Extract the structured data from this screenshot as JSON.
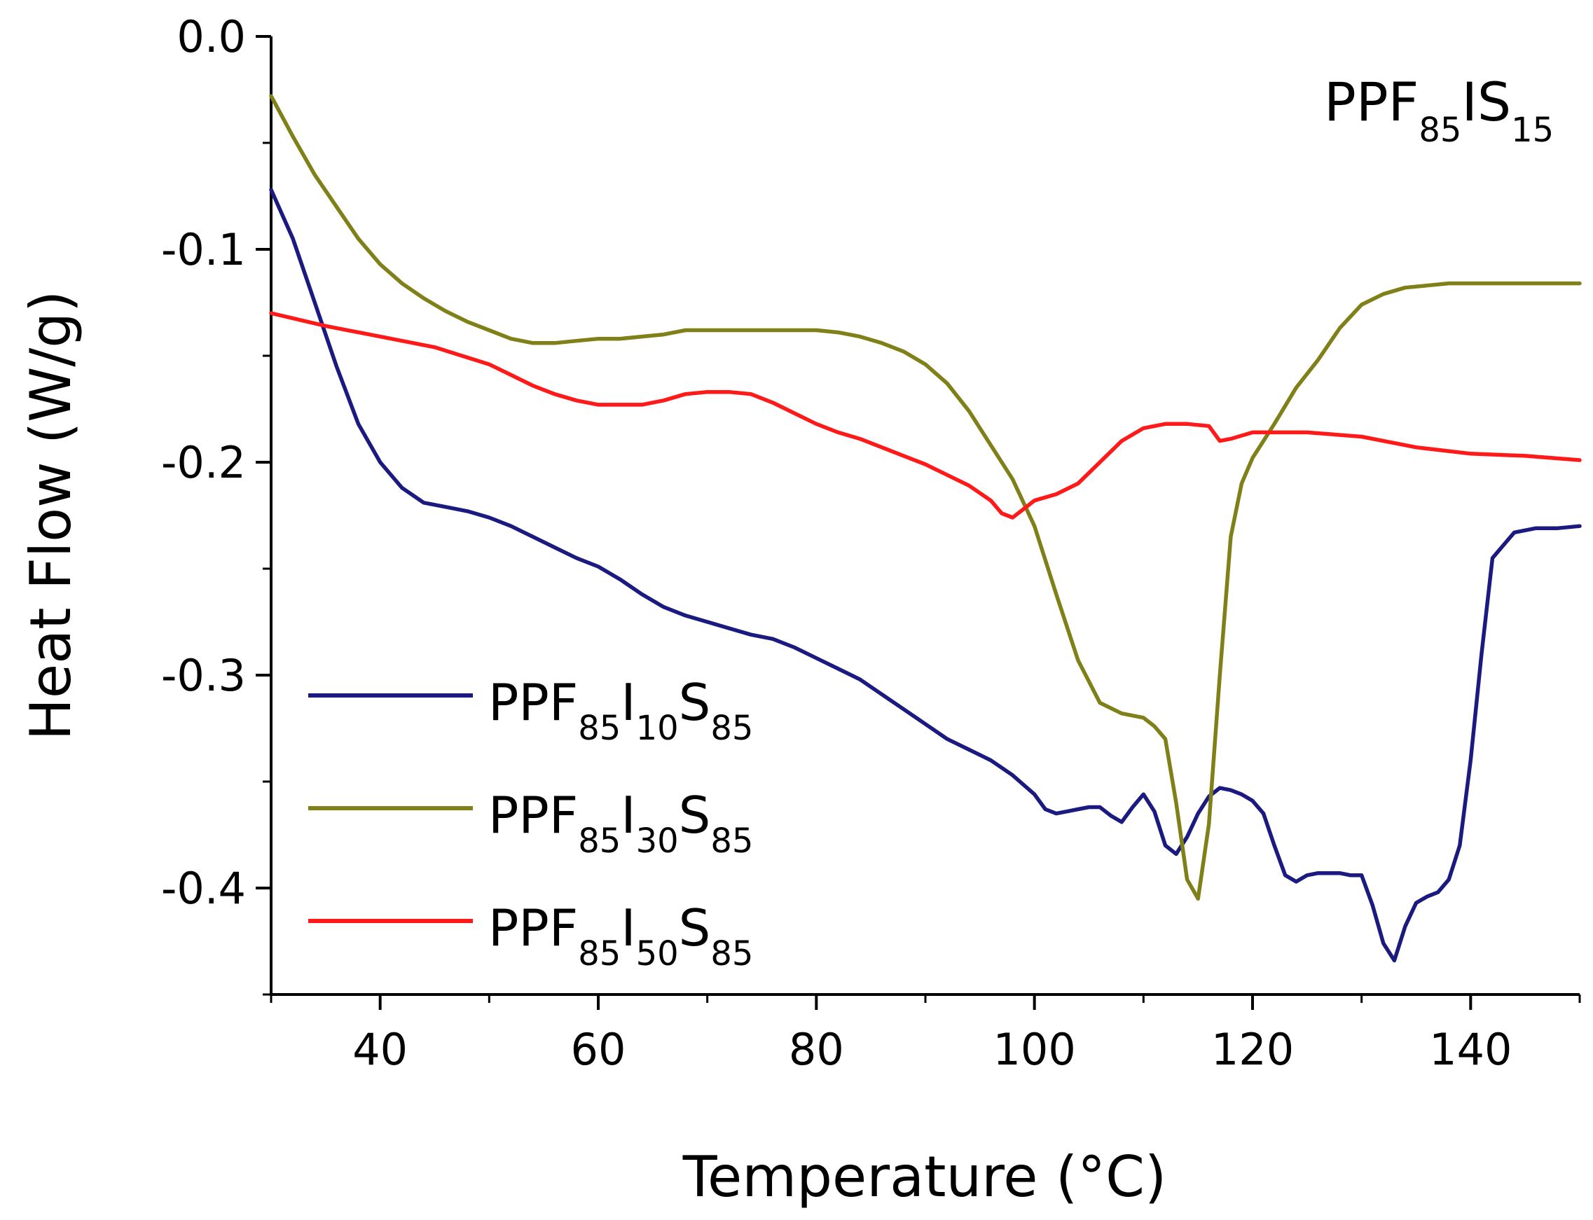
{
  "chart_data": {
    "type": "line",
    "title": "",
    "annotation": {
      "base": "PPF",
      "sub1": "85",
      "mid": "IS",
      "sub2": "15"
    },
    "xlabel": "Temperature (°C)",
    "ylabel": "Heat Flow (W/g)",
    "xlim": [
      30,
      150
    ],
    "ylim": [
      -0.45,
      0.0
    ],
    "xticks": [
      40,
      60,
      80,
      100,
      120,
      140
    ],
    "xtick_labels": [
      "40",
      "60",
      "80",
      "100",
      "120",
      "140"
    ],
    "yticks": [
      0.0,
      -0.1,
      -0.2,
      -0.3,
      -0.4
    ],
    "ytick_labels": [
      "0.0",
      "-0.1",
      "-0.2",
      "-0.3",
      "-0.4"
    ],
    "legend_position": "lower-left",
    "series": [
      {
        "name": "PPF85I10S85",
        "label": {
          "base": "PPF",
          "sub1": "85",
          "mid": "I",
          "sub2": "10",
          "tail": "S",
          "sub3": "85"
        },
        "color": "#1a1a80",
        "x": [
          30,
          32,
          34,
          36,
          38,
          40,
          42,
          44,
          46,
          48,
          50,
          52,
          54,
          56,
          58,
          60,
          62,
          64,
          66,
          68,
          70,
          72,
          74,
          76,
          78,
          80,
          82,
          84,
          86,
          88,
          90,
          92,
          94,
          96,
          98,
          100,
          101,
          102,
          103,
          104,
          105,
          106,
          107,
          108,
          109,
          110,
          111,
          112,
          113,
          114,
          115,
          116,
          117,
          118,
          119,
          120,
          121,
          122,
          123,
          124,
          125,
          126,
          127,
          128,
          129,
          130,
          131,
          132,
          133,
          134,
          135,
          136,
          137,
          138,
          139,
          140,
          141,
          142,
          144,
          146,
          148,
          150
        ],
        "y": [
          -0.072,
          -0.095,
          -0.125,
          -0.155,
          -0.182,
          -0.2,
          -0.212,
          -0.219,
          -0.221,
          -0.223,
          -0.226,
          -0.23,
          -0.235,
          -0.24,
          -0.245,
          -0.249,
          -0.255,
          -0.262,
          -0.268,
          -0.272,
          -0.275,
          -0.278,
          -0.281,
          -0.283,
          -0.287,
          -0.292,
          -0.297,
          -0.302,
          -0.309,
          -0.316,
          -0.323,
          -0.33,
          -0.335,
          -0.34,
          -0.347,
          -0.356,
          -0.363,
          -0.365,
          -0.364,
          -0.363,
          -0.362,
          -0.362,
          -0.366,
          -0.369,
          -0.362,
          -0.356,
          -0.364,
          -0.38,
          -0.384,
          -0.376,
          -0.365,
          -0.357,
          -0.353,
          -0.354,
          -0.356,
          -0.359,
          -0.365,
          -0.38,
          -0.394,
          -0.397,
          -0.394,
          -0.393,
          -0.393,
          -0.393,
          -0.394,
          -0.394,
          -0.408,
          -0.426,
          -0.434,
          -0.418,
          -0.407,
          -0.404,
          -0.402,
          -0.396,
          -0.38,
          -0.34,
          -0.29,
          -0.245,
          -0.233,
          -0.231,
          -0.231,
          -0.23
        ]
      },
      {
        "name": "PPF85I30S85",
        "label": {
          "base": "PPF",
          "sub1": "85",
          "mid": "I",
          "sub2": "30",
          "tail": "S",
          "sub3": "85"
        },
        "color": "#808018",
        "x": [
          30,
          32,
          34,
          36,
          38,
          40,
          42,
          44,
          46,
          48,
          50,
          52,
          54,
          56,
          58,
          60,
          62,
          64,
          66,
          68,
          70,
          72,
          74,
          76,
          78,
          80,
          82,
          84,
          86,
          88,
          90,
          92,
          94,
          96,
          98,
          100,
          102,
          104,
          106,
          108,
          110,
          111,
          112,
          113,
          114,
          115,
          116,
          117,
          118,
          119,
          120,
          121,
          122,
          124,
          126,
          128,
          130,
          132,
          134,
          136,
          138,
          140,
          145,
          150
        ],
        "y": [
          -0.028,
          -0.047,
          -0.065,
          -0.08,
          -0.095,
          -0.107,
          -0.116,
          -0.123,
          -0.129,
          -0.134,
          -0.138,
          -0.142,
          -0.144,
          -0.144,
          -0.143,
          -0.142,
          -0.142,
          -0.141,
          -0.14,
          -0.138,
          -0.138,
          -0.138,
          -0.138,
          -0.138,
          -0.138,
          -0.138,
          -0.139,
          -0.141,
          -0.144,
          -0.148,
          -0.154,
          -0.163,
          -0.176,
          -0.192,
          -0.208,
          -0.23,
          -0.262,
          -0.293,
          -0.313,
          -0.318,
          -0.32,
          -0.324,
          -0.33,
          -0.36,
          -0.396,
          -0.405,
          -0.37,
          -0.3,
          -0.235,
          -0.21,
          -0.198,
          -0.19,
          -0.182,
          -0.165,
          -0.152,
          -0.137,
          -0.126,
          -0.121,
          -0.118,
          -0.117,
          -0.116,
          -0.116,
          -0.116,
          -0.116
        ]
      },
      {
        "name": "PPF85I50S85",
        "label": {
          "base": "PPF",
          "sub1": "85",
          "mid": "I",
          "sub2": "50",
          "tail": "S",
          "sub3": "85"
        },
        "color": "#ff1a1a",
        "x": [
          30,
          35,
          40,
          45,
          50,
          52,
          54,
          56,
          58,
          60,
          62,
          64,
          66,
          68,
          70,
          72,
          74,
          76,
          78,
          80,
          82,
          84,
          86,
          88,
          90,
          92,
          94,
          96,
          97,
          98,
          99,
          100,
          102,
          104,
          106,
          108,
          110,
          112,
          114,
          116,
          117,
          118,
          120,
          125,
          130,
          135,
          140,
          145,
          150
        ],
        "y": [
          -0.13,
          -0.136,
          -0.141,
          -0.146,
          -0.154,
          -0.159,
          -0.164,
          -0.168,
          -0.171,
          -0.173,
          -0.173,
          -0.173,
          -0.171,
          -0.168,
          -0.167,
          -0.167,
          -0.168,
          -0.172,
          -0.177,
          -0.182,
          -0.186,
          -0.189,
          -0.193,
          -0.197,
          -0.201,
          -0.206,
          -0.211,
          -0.218,
          -0.224,
          -0.226,
          -0.222,
          -0.218,
          -0.215,
          -0.21,
          -0.2,
          -0.19,
          -0.184,
          -0.182,
          -0.182,
          -0.183,
          -0.19,
          -0.189,
          -0.186,
          -0.186,
          -0.188,
          -0.193,
          -0.196,
          -0.197,
          -0.199
        ]
      }
    ]
  }
}
